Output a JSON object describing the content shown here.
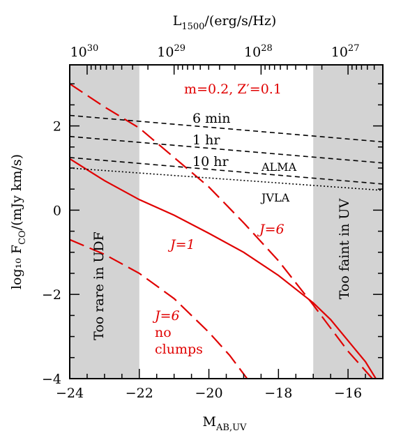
{
  "chart_data": {
    "type": "line",
    "xlabel": "M",
    "xlabel_sub": "AB,UV",
    "ylabel": "log₁₀ F",
    "ylabel_sub": "CO",
    "ylabel_units": "/(mJy km/s)",
    "top_label": "L",
    "top_label_sub": "1500",
    "top_label_units": "/(erg/s/Hz)",
    "annotation_title": "m=0.2,  Z′=0.1",
    "xlim": [
      -24,
      -15
    ],
    "ylim": [
      -4,
      3.45
    ],
    "x_ticks": [
      "−24",
      "−22",
      "−20",
      "−18",
      "−16"
    ],
    "x_tick_values": [
      -24,
      -22,
      -20,
      -18,
      -16
    ],
    "y_ticks": [
      "−4",
      "−2",
      "0",
      "2"
    ],
    "y_tick_values": [
      -4,
      -2,
      0,
      2
    ],
    "top_ticks": [
      {
        "base": "10",
        "exp": "30",
        "x": -23.5
      },
      {
        "base": "10",
        "exp": "29",
        "x": -21.0
      },
      {
        "base": "10",
        "exp": "28",
        "x": -18.5
      },
      {
        "base": "10",
        "exp": "27",
        "x": -16.0
      }
    ],
    "shaded_regions": [
      {
        "x": [
          -24,
          -22
        ],
        "label": "Too rare in UDF"
      },
      {
        "x": [
          -17,
          -15
        ],
        "label": "Too faint in UV"
      }
    ],
    "series": [
      {
        "name": "J=1",
        "style": "solid",
        "color": "#e00000",
        "x": [
          -24,
          -23,
          -22,
          -21,
          -20,
          -19,
          -18,
          -17,
          -16.5,
          -16,
          -15.5,
          -15.2
        ],
        "y": [
          1.22,
          0.7,
          0.25,
          -0.12,
          -0.55,
          -1.0,
          -1.55,
          -2.2,
          -2.6,
          -3.1,
          -3.6,
          -4.0
        ]
      },
      {
        "name": "J=6",
        "style": "dashed",
        "color": "#e00000",
        "x": [
          -24,
          -23,
          -22,
          -21,
          -20,
          -19,
          -18,
          -17,
          -16,
          -15.3
        ],
        "y": [
          3.0,
          2.45,
          1.95,
          1.25,
          0.55,
          -0.3,
          -1.2,
          -2.25,
          -3.35,
          -4.0
        ]
      },
      {
        "name": "J=6 no clumps",
        "style": "dashed",
        "color": "#e00000",
        "x": [
          -24,
          -23,
          -22,
          -21,
          -20,
          -19.4,
          -18.9
        ],
        "y": [
          -0.7,
          -1.05,
          -1.5,
          -2.1,
          -2.9,
          -3.45,
          -4.0
        ]
      },
      {
        "name": "6 min",
        "style": "dashed",
        "color": "#000000",
        "x": [
          -24,
          -15
        ],
        "y": [
          2.25,
          1.62
        ]
      },
      {
        "name": "1 hr",
        "style": "dashed",
        "color": "#000000",
        "x": [
          -24,
          -15
        ],
        "y": [
          1.75,
          1.12
        ]
      },
      {
        "name": "10 hr",
        "style": "dashed",
        "color": "#000000",
        "x": [
          -24,
          -15
        ],
        "y": [
          1.25,
          0.62
        ]
      },
      {
        "name": "JVLA",
        "style": "dotted",
        "color": "#000000",
        "x": [
          -24,
          -15
        ],
        "y": [
          1.0,
          0.47
        ]
      }
    ],
    "annotations": [
      {
        "text": "6 min",
        "color": "#000000"
      },
      {
        "text": "1 hr",
        "color": "#000000"
      },
      {
        "text": "10 hr",
        "color": "#000000"
      },
      {
        "text": "ALMA",
        "color": "#000000"
      },
      {
        "text": "JVLA",
        "color": "#000000"
      },
      {
        "text": "J=6",
        "color": "#e00000"
      },
      {
        "text": "J=1",
        "color": "#e00000"
      },
      {
        "text": "J=6",
        "color": "#e00000"
      },
      {
        "text": "no",
        "color": "#e00000"
      },
      {
        "text": "clumps",
        "color": "#e00000"
      }
    ],
    "colors": {
      "red": "#e00000",
      "shade": "#d3d3d3",
      "black": "#000000"
    }
  }
}
